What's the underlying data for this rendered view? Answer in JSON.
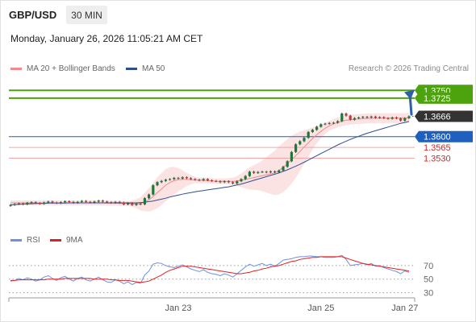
{
  "header": {
    "pair": "GBP/USD",
    "timeframe": "30 MIN",
    "datetime": "Monday, January 26, 2026 11:05:21 AM CET"
  },
  "legend": {
    "ma20_label": "MA 20 + Bollinger Bands",
    "ma50_label": "MA 50",
    "copyright": "Research © 2026 Trading Central",
    "rsi_label": "RSI",
    "rsi_ma_label": "9MA"
  },
  "colors": {
    "resistance": "#4ca30d",
    "current": "#333333",
    "pivot": "#1f5fbf",
    "support": "#cc2a2a",
    "ma20": "#f28a8a",
    "ma50": "#2e4f8f",
    "band_fill": "#fbe3e3",
    "candle_up": "#1b7a3a",
    "candle_down": "#c43b3b",
    "rsi": "#6f8fe0",
    "rsi_ma": "#e02020",
    "arrow": "#2e5fa8"
  },
  "chart_data": {
    "type": "candlestick",
    "instrument": "GBP/USD",
    "interval": "30 MIN",
    "price_range": [
      1.333,
      1.379
    ],
    "levels": [
      {
        "value": 1.375,
        "label": "1.3750",
        "kind": "resistance"
      },
      {
        "value": 1.3725,
        "label": "1.3725",
        "kind": "resistance"
      },
      {
        "value": 1.3666,
        "label": "1.3666",
        "kind": "current"
      },
      {
        "value": 1.36,
        "label": "1.3600",
        "kind": "pivot"
      },
      {
        "value": 1.3565,
        "label": "1.3565",
        "kind": "support"
      },
      {
        "value": 1.353,
        "label": "1.3530",
        "kind": "support"
      }
    ],
    "x_labels": [
      {
        "label": "Jan 23",
        "index": 40
      },
      {
        "label": "Jan 25",
        "index": 74
      },
      {
        "label": "Jan 27",
        "index": 94
      }
    ],
    "n_candles": 96,
    "close": [
      1.3378,
      1.3381,
      1.3383,
      1.338,
      1.3385,
      1.3387,
      1.3384,
      1.3382,
      1.3386,
      1.3389,
      1.3386,
      1.3384,
      1.3387,
      1.339,
      1.3388,
      1.3385,
      1.3388,
      1.3391,
      1.3388,
      1.3386,
      1.3389,
      1.3392,
      1.3389,
      1.3387,
      1.3385,
      1.3388,
      1.3386,
      1.338,
      1.3384,
      1.3378,
      1.3382,
      1.338,
      1.34,
      1.3412,
      1.3442,
      1.3452,
      1.3456,
      1.346,
      1.3462,
      1.3466,
      1.3464,
      1.3468,
      1.3465,
      1.3462,
      1.346,
      1.3458,
      1.3462,
      1.3458,
      1.3456,
      1.3455,
      1.3452,
      1.3455,
      1.3452,
      1.3448,
      1.3455,
      1.3462,
      1.3472,
      1.3486,
      1.3482,
      1.3485,
      1.3486,
      1.3484,
      1.3487,
      1.3484,
      1.349,
      1.3502,
      1.352,
      1.355,
      1.3575,
      1.3585,
      1.3596,
      1.3615,
      1.3622,
      1.3632,
      1.364,
      1.3642,
      1.3644,
      1.3645,
      1.365,
      1.3675,
      1.3668,
      1.3655,
      1.366,
      1.3662,
      1.3664,
      1.3662,
      1.3665,
      1.3661,
      1.3663,
      1.366,
      1.3658,
      1.3662,
      1.3659,
      1.3652,
      1.366,
      1.3666
    ],
    "ma20": [
      1.3385,
      1.3385,
      1.3385,
      1.3385,
      1.3385,
      1.3385,
      1.3385,
      1.3385,
      1.3385,
      1.3385,
      1.3385,
      1.3385,
      1.3385,
      1.3385,
      1.3385,
      1.3385,
      1.3385,
      1.3385,
      1.3385,
      1.3385,
      1.3385,
      1.3385,
      1.3385,
      1.3384,
      1.3384,
      1.3384,
      1.3383,
      1.3383,
      1.3383,
      1.3382,
      1.3382,
      1.3382,
      1.3388,
      1.3395,
      1.3405,
      1.3418,
      1.343,
      1.3442,
      1.3451,
      1.3457,
      1.346,
      1.3461,
      1.3461,
      1.346,
      1.3459,
      1.3458,
      1.3458,
      1.3457,
      1.3456,
      1.3455,
      1.3455,
      1.3455,
      1.3455,
      1.3455,
      1.3456,
      1.3458,
      1.3461,
      1.3464,
      1.3467,
      1.347,
      1.3473,
      1.3476,
      1.3479,
      1.3482,
      1.349,
      1.35,
      1.3512,
      1.3525,
      1.3538,
      1.3552,
      1.3566,
      1.358,
      1.3594,
      1.3606,
      1.3617,
      1.3627,
      1.3635,
      1.3641,
      1.3646,
      1.365,
      1.3653,
      1.3655,
      1.3656,
      1.3657,
      1.3658,
      1.3659,
      1.3659,
      1.366,
      1.366,
      1.366,
      1.366,
      1.366,
      1.366,
      1.366,
      1.366,
      1.3661
    ],
    "ma50": [
      1.3378,
      1.3379,
      1.338,
      1.3381,
      1.3382,
      1.3382,
      1.3383,
      1.3383,
      1.3383,
      1.3384,
      1.3384,
      1.3384,
      1.3384,
      1.3384,
      1.3385,
      1.3385,
      1.3385,
      1.3385,
      1.3385,
      1.3385,
      1.3385,
      1.3385,
      1.3385,
      1.3385,
      1.3385,
      1.3385,
      1.3385,
      1.3385,
      1.3385,
      1.3385,
      1.3385,
      1.3386,
      1.3387,
      1.3389,
      1.3391,
      1.3394,
      1.3397,
      1.34,
      1.3404,
      1.3407,
      1.341,
      1.3413,
      1.3416,
      1.3418,
      1.3421,
      1.3423,
      1.3425,
      1.3427,
      1.3429,
      1.3431,
      1.3433,
      1.3435,
      1.3437,
      1.344,
      1.3443,
      1.3446,
      1.345,
      1.3454,
      1.3458,
      1.3462,
      1.3466,
      1.347,
      1.3474,
      1.3478,
      1.3482,
      1.3487,
      1.3492,
      1.3498,
      1.3504,
      1.351,
      1.3517,
      1.3524,
      1.3531,
      1.3538,
      1.3545,
      1.3552,
      1.3559,
      1.3566,
      1.3573,
      1.3579,
      1.3585,
      1.3591,
      1.3596,
      1.3601,
      1.3606,
      1.3611,
      1.3615,
      1.3619,
      1.3623,
      1.3627,
      1.3631,
      1.3635,
      1.3639,
      1.3643,
      1.3646,
      1.3649
    ],
    "bb_halfwidth": [
      0.0008,
      0.0008,
      0.0008,
      0.0008,
      0.0008,
      0.0008,
      0.0008,
      0.0008,
      0.0008,
      0.0008,
      0.0008,
      0.0008,
      0.0008,
      0.0008,
      0.0008,
      0.0008,
      0.0008,
      0.0008,
      0.0008,
      0.0008,
      0.0008,
      0.0008,
      0.0008,
      0.0008,
      0.0008,
      0.0008,
      0.0008,
      0.0008,
      0.0008,
      0.001,
      0.0015,
      0.0022,
      0.003,
      0.0038,
      0.0045,
      0.005,
      0.0052,
      0.0052,
      0.005,
      0.0045,
      0.0038,
      0.003,
      0.0022,
      0.0015,
      0.001,
      0.0009,
      0.0009,
      0.0009,
      0.0009,
      0.0009,
      0.0009,
      0.0009,
      0.001,
      0.0012,
      0.0016,
      0.0022,
      0.003,
      0.0036,
      0.004,
      0.0044,
      0.005,
      0.0058,
      0.0065,
      0.0072,
      0.0078,
      0.008,
      0.008,
      0.0078,
      0.0072,
      0.0065,
      0.0055,
      0.0045,
      0.0036,
      0.0028,
      0.0022,
      0.0018,
      0.0016,
      0.0016,
      0.0016,
      0.0016,
      0.0016,
      0.0016,
      0.0016,
      0.0016,
      0.0016,
      0.0016,
      0.0016,
      0.0016,
      0.0016,
      0.0016,
      0.0016,
      0.0016,
      0.0016,
      0.0016,
      0.0016,
      0.0016
    ],
    "rsi": {
      "levels": [
        70,
        50,
        30
      ],
      "range": [
        20,
        90
      ],
      "values": [
        47,
        48,
        51,
        49,
        52,
        50,
        47,
        49,
        53,
        55,
        51,
        48,
        52,
        54,
        50,
        47,
        51,
        53,
        49,
        47,
        50,
        53,
        49,
        46,
        45,
        49,
        47,
        43,
        46,
        42,
        45,
        44,
        56,
        62,
        72,
        74,
        73,
        70,
        68,
        67,
        69,
        71,
        68,
        65,
        63,
        61,
        64,
        60,
        58,
        57,
        55,
        58,
        56,
        53,
        58,
        63,
        68,
        72,
        69,
        71,
        73,
        70,
        72,
        69,
        73,
        78,
        79,
        80,
        82,
        83,
        83,
        84,
        84,
        83,
        83,
        82,
        82,
        82,
        83,
        85,
        79,
        70,
        71,
        72,
        73,
        71,
        73,
        69,
        70,
        67,
        65,
        63,
        61,
        58,
        62,
        60
      ],
      "ma9": [
        48,
        48,
        49,
        49,
        49,
        49,
        49,
        49,
        49,
        50,
        50,
        50,
        50,
        51,
        51,
        51,
        51,
        51,
        51,
        51,
        50,
        50,
        50,
        50,
        49,
        49,
        48,
        48,
        48,
        47,
        46,
        45,
        46,
        47,
        50,
        53,
        56,
        60,
        63,
        65,
        67,
        69,
        69,
        69,
        68,
        67,
        66,
        65,
        64,
        63,
        62,
        61,
        60,
        59,
        58,
        58,
        59,
        60,
        62,
        63,
        65,
        66,
        68,
        69,
        70,
        72,
        74,
        76,
        77,
        79,
        80,
        81,
        82,
        82,
        83,
        83,
        83,
        83,
        83,
        83,
        81,
        79,
        77,
        75,
        73,
        72,
        71,
        70,
        69,
        68,
        67,
        66,
        65,
        64,
        63,
        62
      ]
    }
  }
}
